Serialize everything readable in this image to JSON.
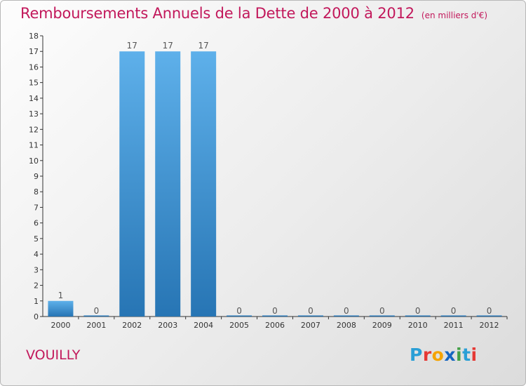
{
  "header": {
    "title": "Remboursements Annuels de la Dette de 2000 à 2012",
    "unit": "(en milliers d'€)"
  },
  "footer": {
    "commune": "VOUILLY",
    "logo_letters": [
      "P",
      "r",
      "o",
      "x",
      "i",
      "t",
      "i"
    ],
    "logo_colors": [
      "#2a9fd6",
      "#e53935",
      "#f5a300",
      "#1565c0",
      "#43a047",
      "#2a9fd6",
      "#e53935"
    ]
  },
  "colors": {
    "bar_top": "#5eb0ea",
    "bar_bottom": "#2775b4",
    "accent": "#c2185b",
    "axis": "#333333"
  },
  "chart_data": {
    "type": "bar",
    "categories": [
      "2000",
      "2001",
      "2002",
      "2003",
      "2004",
      "2005",
      "2006",
      "2007",
      "2008",
      "2009",
      "2010",
      "2011",
      "2012"
    ],
    "values": [
      1,
      0,
      17,
      17,
      17,
      0,
      0,
      0,
      0,
      0,
      0,
      0,
      0
    ],
    "data_labels": [
      "1",
      "0",
      "17",
      "17",
      "17",
      "0",
      "0",
      "0",
      "0",
      "0",
      "0",
      "0",
      "0"
    ],
    "yticks": [
      "0",
      "1",
      "2",
      "3",
      "4",
      "5",
      "6",
      "7",
      "8",
      "9",
      "10",
      "11",
      "12",
      "13",
      "14",
      "15",
      "16",
      "17",
      "18"
    ],
    "ylim": [
      0,
      18
    ],
    "title": "Remboursements Annuels de la Dette de 2000 à 2012",
    "xlabel": "",
    "ylabel": "",
    "grid": false
  }
}
